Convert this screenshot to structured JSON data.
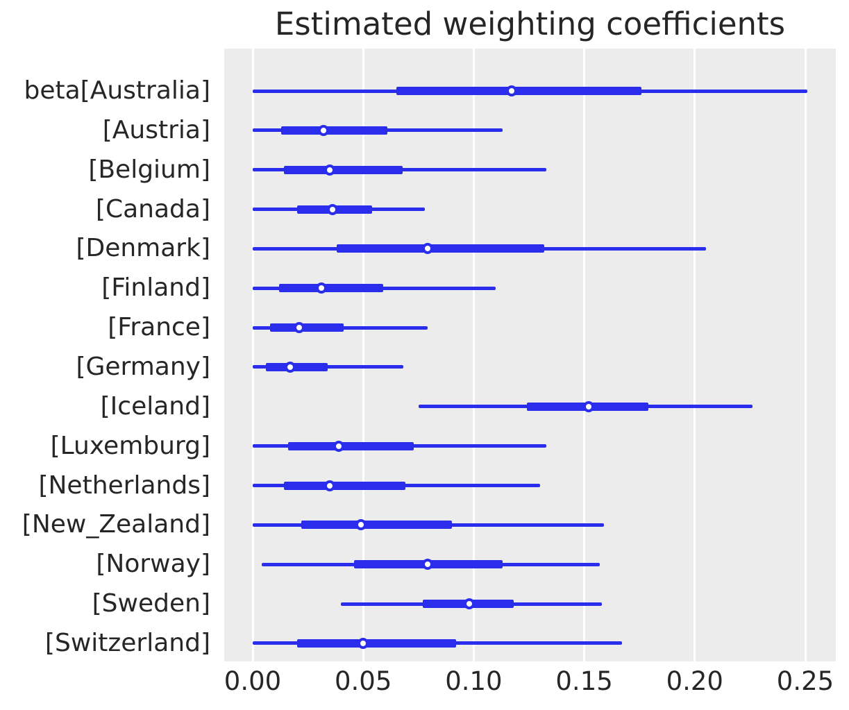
{
  "title": "Estimated weighting coefficients",
  "colors": {
    "line": "#2a2eec",
    "plot_background": "#ececec",
    "gridline": "#ffffff",
    "text": "#262626",
    "marker_face": "#ffffff"
  },
  "chart_data": {
    "type": "forest",
    "title": "Estimated weighting coefficients",
    "xlabel": "",
    "ylabel": "",
    "xlim": [
      0.0,
      0.25
    ],
    "x_ticks": [
      0.0,
      0.05,
      0.1,
      0.15,
      0.2,
      0.25
    ],
    "x_tick_labels": [
      "0.00",
      "0.05",
      "0.10",
      "0.15",
      "0.20",
      "0.25"
    ],
    "grid": true,
    "legend": "none",
    "rows": [
      {
        "label": "beta[Australia]",
        "ci_low": 0.0,
        "ci_high": 0.251,
        "hdi_low": 0.065,
        "hdi_high": 0.176,
        "median": 0.117
      },
      {
        "label": "[Austria]",
        "ci_low": 0.0,
        "ci_high": 0.113,
        "hdi_low": 0.013,
        "hdi_high": 0.061,
        "median": 0.032
      },
      {
        "label": "[Belgium]",
        "ci_low": 0.0,
        "ci_high": 0.133,
        "hdi_low": 0.014,
        "hdi_high": 0.068,
        "median": 0.035
      },
      {
        "label": "[Canada]",
        "ci_low": 0.0,
        "ci_high": 0.078,
        "hdi_low": 0.02,
        "hdi_high": 0.054,
        "median": 0.036
      },
      {
        "label": "[Denmark]",
        "ci_low": 0.0,
        "ci_high": 0.205,
        "hdi_low": 0.038,
        "hdi_high": 0.132,
        "median": 0.079
      },
      {
        "label": "[Finland]",
        "ci_low": 0.0,
        "ci_high": 0.11,
        "hdi_low": 0.012,
        "hdi_high": 0.059,
        "median": 0.031
      },
      {
        "label": "[France]",
        "ci_low": 0.0,
        "ci_high": 0.079,
        "hdi_low": 0.008,
        "hdi_high": 0.041,
        "median": 0.021
      },
      {
        "label": "[Germany]",
        "ci_low": 0.0,
        "ci_high": 0.068,
        "hdi_low": 0.006,
        "hdi_high": 0.034,
        "median": 0.017
      },
      {
        "label": "[Iceland]",
        "ci_low": 0.075,
        "ci_high": 0.226,
        "hdi_low": 0.124,
        "hdi_high": 0.179,
        "median": 0.152
      },
      {
        "label": "[Luxemburg]",
        "ci_low": 0.0,
        "ci_high": 0.133,
        "hdi_low": 0.016,
        "hdi_high": 0.073,
        "median": 0.039
      },
      {
        "label": "[Netherlands]",
        "ci_low": 0.0,
        "ci_high": 0.13,
        "hdi_low": 0.014,
        "hdi_high": 0.069,
        "median": 0.035
      },
      {
        "label": "[New_Zealand]",
        "ci_low": 0.0,
        "ci_high": 0.159,
        "hdi_low": 0.022,
        "hdi_high": 0.09,
        "median": 0.049
      },
      {
        "label": "[Norway]",
        "ci_low": 0.004,
        "ci_high": 0.157,
        "hdi_low": 0.046,
        "hdi_high": 0.113,
        "median": 0.079
      },
      {
        "label": "[Sweden]",
        "ci_low": 0.04,
        "ci_high": 0.158,
        "hdi_low": 0.077,
        "hdi_high": 0.118,
        "median": 0.098
      },
      {
        "label": "[Switzerland]",
        "ci_low": 0.0,
        "ci_high": 0.167,
        "hdi_low": 0.02,
        "hdi_high": 0.092,
        "median": 0.05
      }
    ]
  }
}
